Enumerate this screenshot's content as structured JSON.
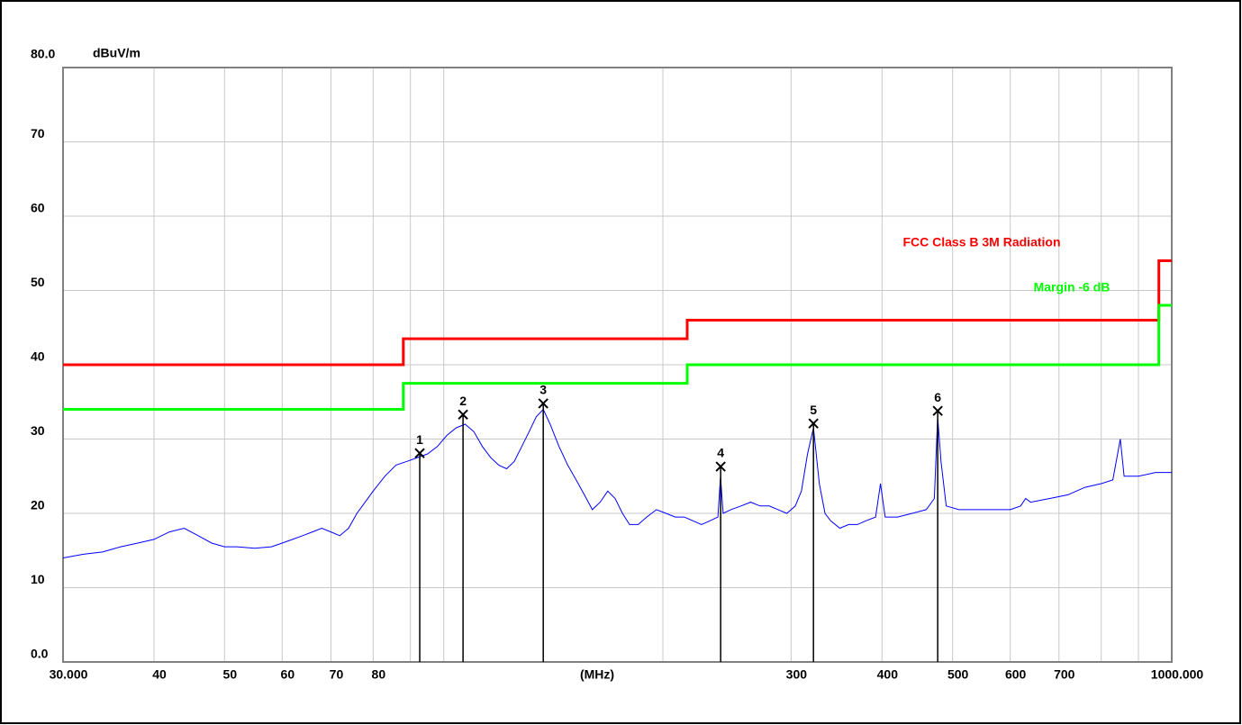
{
  "chart_data": {
    "type": "line",
    "ylabel": "dBuV/m",
    "xlabel": "(MHz)",
    "log_x": true,
    "grid": true,
    "xlim": [
      30,
      1000
    ],
    "ylim": [
      0,
      80
    ],
    "yticks": [
      {
        "value": 0,
        "label": "0.0"
      },
      10,
      20,
      30,
      40,
      50,
      60,
      70,
      {
        "value": 80,
        "label": "80.0"
      }
    ],
    "xticks": [
      {
        "value": 30,
        "label": "30.000"
      },
      40,
      50,
      60,
      70,
      80,
      300,
      400,
      500,
      600,
      700,
      {
        "value": 1000,
        "label": "1000.000"
      }
    ],
    "xgrid": [
      40,
      50,
      60,
      70,
      80,
      90,
      100,
      200,
      300,
      400,
      500,
      600,
      700,
      800,
      900
    ],
    "series": [
      {
        "name": "FCC Class B 3M Radiation",
        "color": "#ff0000",
        "x": [
          30,
          88,
          88,
          216,
          216,
          960,
          960,
          1000
        ],
        "values": [
          40,
          40,
          43.5,
          43.5,
          46,
          46,
          54,
          54
        ]
      },
      {
        "name": "Margin -6 dB",
        "color": "#00ff00",
        "x": [
          30,
          88,
          88,
          216,
          216,
          960,
          960,
          1000
        ],
        "values": [
          34,
          34,
          37.5,
          37.5,
          40,
          40,
          48,
          48
        ]
      }
    ],
    "trace": {
      "color": "#0000ff",
      "x": [
        30,
        32,
        34,
        36,
        38,
        40,
        42,
        44,
        46,
        48,
        50,
        52,
        55,
        58,
        60,
        62,
        64,
        66,
        68,
        70,
        72,
        74,
        76,
        78,
        80,
        83,
        86,
        89,
        92,
        95,
        98,
        101,
        104,
        107,
        110,
        113,
        116,
        119,
        122,
        125,
        128,
        131,
        134,
        137,
        140,
        144,
        148,
        152,
        156,
        160,
        164,
        168,
        172,
        176,
        180,
        185,
        190,
        196,
        202,
        208,
        214,
        220,
        226,
        232,
        238,
        240,
        242,
        248,
        256,
        264,
        272,
        280,
        288,
        296,
        304,
        310,
        316,
        322,
        328,
        334,
        340,
        350,
        360,
        370,
        380,
        392,
        398,
        404,
        420,
        440,
        460,
        472,
        477,
        482,
        490,
        510,
        540,
        570,
        600,
        620,
        630,
        640,
        680,
        720,
        760,
        800,
        830,
        850,
        860,
        900,
        950,
        1000
      ],
      "values": [
        14,
        14.5,
        14.8,
        15.5,
        16,
        16.5,
        17.5,
        18,
        17,
        16,
        15.5,
        15.5,
        15.3,
        15.5,
        16,
        16.5,
        17,
        17.5,
        18,
        17.5,
        17,
        18,
        20,
        21.5,
        23,
        25,
        26.5,
        27,
        27.5,
        28,
        29,
        30.5,
        31.5,
        32,
        31,
        29,
        27.5,
        26.5,
        26,
        27,
        29,
        31,
        33,
        34,
        32,
        29,
        26.5,
        24.5,
        22.5,
        20.5,
        21.5,
        23,
        22,
        20,
        18.5,
        18.5,
        19.5,
        20.5,
        20,
        19.5,
        19.5,
        19,
        18.5,
        19,
        19.5,
        25,
        20,
        20.5,
        21,
        21.5,
        21,
        21,
        20.5,
        20,
        21,
        23,
        28,
        31.5,
        24,
        20,
        19,
        18,
        18.5,
        18.5,
        19,
        19.5,
        24,
        19.5,
        19.5,
        20,
        20.5,
        22,
        33,
        27,
        21,
        20.5,
        20.5,
        20.5,
        20.5,
        21,
        22,
        21.5,
        22,
        22.5,
        23.5,
        24,
        24.5,
        30,
        25,
        25,
        25.5,
        25.5
      ]
    },
    "markers": [
      {
        "label": "1",
        "x": 92.7,
        "value": 28.1
      },
      {
        "label": "2",
        "x": 106.3,
        "value": 33.3
      },
      {
        "label": "3",
        "x": 137,
        "value": 34.8
      },
      {
        "label": "4",
        "x": 240.1,
        "value": 26.3
      },
      {
        "label": "5",
        "x": 322,
        "value": 32.1
      },
      {
        "label": "6",
        "x": 477,
        "value": 33.8
      }
    ]
  }
}
